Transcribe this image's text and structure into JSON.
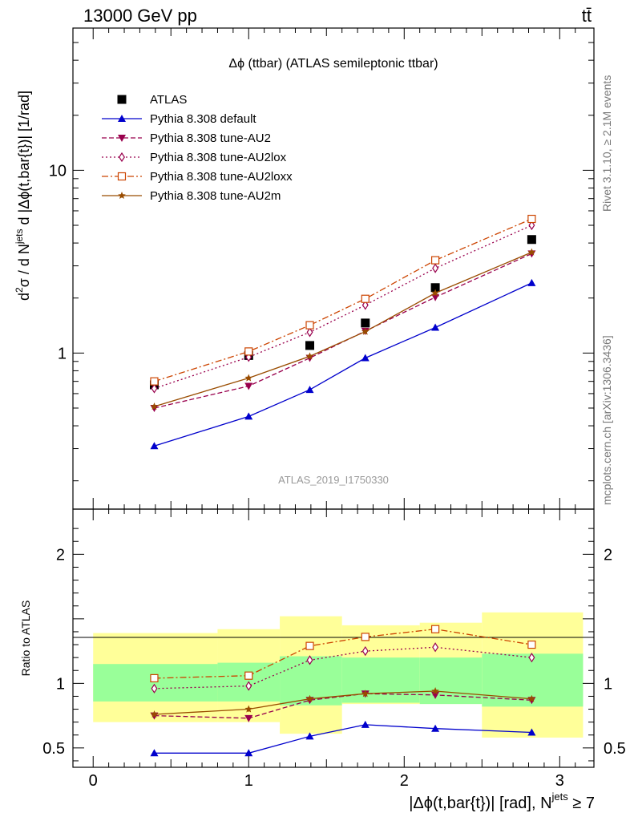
{
  "header": {
    "energy_label": "13000 GeV pp",
    "process_label": "tt̄"
  },
  "side_labels": {
    "rivet": "Rivet 3.1.10, ≥ 2.1M events",
    "mcplots": "mcplots.cern.ch [arXiv:1306.3436]"
  },
  "chart_data": [
    {
      "type": "scatter",
      "panel": "main",
      "title": "Δϕ (ttbar) (ATLAS semileptonic ttbar)",
      "watermark": "ATLAS_2019_I1750330",
      "ylabel": "d²σ / d N^jets d |Δϕ(t,bar{t})| [1/rad]",
      "ylabel_parts": {
        "a": "d",
        "a_sup": "2",
        "b": "σ / d N",
        "b_sup": "jets",
        "c": " d |Δϕ(t,bar{t})| [1/rad]"
      },
      "yscale": "log",
      "ylim": [
        0.14,
        60
      ],
      "xlim": [
        -0.13,
        3.22
      ],
      "ytick_labels": [
        "1",
        "10"
      ],
      "ytick_values": [
        1,
        10
      ],
      "legend_position": "top-left",
      "x": [
        0.393,
        1.0,
        1.393,
        1.75,
        2.2,
        2.82
      ],
      "series": [
        {
          "name": "ATLAS",
          "color": "#000000",
          "marker": "square",
          "line": "none",
          "values": [
            0.67,
            0.97,
            1.1,
            1.46,
            2.28,
            4.18
          ]
        },
        {
          "name": "Pythia 8.308 default",
          "color": "#0000cc",
          "marker": "triangle-up",
          "line": "solid",
          "values": [
            0.31,
            0.45,
            0.63,
            0.94,
            1.38,
            2.42
          ]
        },
        {
          "name": "Pythia 8.308 tune-AU2",
          "color": "#99004d",
          "marker": "triangle-down",
          "line": "dashed",
          "values": [
            0.5,
            0.66,
            0.94,
            1.32,
            2.02,
            3.5
          ]
        },
        {
          "name": "Pythia 8.308 tune-AU2lox",
          "color": "#99004d",
          "marker": "diamond-open",
          "line": "dotted",
          "values": [
            0.64,
            0.95,
            1.3,
            1.83,
            2.91,
            5.0
          ]
        },
        {
          "name": "Pythia 8.308 tune-AU2loxx",
          "color": "#cc4400",
          "marker": "square-open",
          "line": "dashdot",
          "values": [
            0.7,
            1.02,
            1.42,
            1.98,
            3.22,
            5.42
          ]
        },
        {
          "name": "Pythia 8.308 tune-AU2m",
          "color": "#994c00",
          "marker": "star",
          "line": "solid",
          "values": [
            0.51,
            0.73,
            0.96,
            1.31,
            2.13,
            3.56
          ]
        }
      ]
    },
    {
      "type": "line",
      "panel": "ratio",
      "ylabel": "Ratio to ATLAS",
      "xlabel": "|Δϕ(t,bar{t})| [rad], N^jets ≥ 7",
      "xlabel_parts": {
        "a": "|Δϕ(t,bar{t})| [rad], N",
        "a_sup": "jets",
        "b": " ≥ 7"
      },
      "ylim": [
        0.35,
        2.35
      ],
      "xlim": [
        -0.13,
        3.22
      ],
      "xtick_labels": [
        "0",
        "1",
        "2",
        "3"
      ],
      "xtick_values": [
        0,
        1,
        2,
        3
      ],
      "ytick_labels": [
        "0.5",
        "1",
        "2"
      ],
      "ytick_values": [
        0.5,
        1,
        2
      ],
      "bands": {
        "bins": [
          [
            0.0,
            0.8
          ],
          [
            0.8,
            1.2
          ],
          [
            1.2,
            1.6
          ],
          [
            1.6,
            2.1
          ],
          [
            2.1,
            2.5
          ],
          [
            2.5,
            3.15
          ]
        ],
        "green": [
          [
            0.86,
            1.15
          ],
          [
            0.86,
            1.16
          ],
          [
            0.83,
            1.21
          ],
          [
            0.85,
            1.2
          ],
          [
            0.84,
            1.2
          ],
          [
            0.82,
            1.23
          ]
        ],
        "yellow": [
          [
            0.7,
            1.39
          ],
          [
            0.7,
            1.42
          ],
          [
            0.61,
            1.52
          ],
          [
            0.84,
            1.45
          ],
          [
            0.84,
            1.47
          ],
          [
            0.58,
            1.55
          ]
        ]
      },
      "x": [
        0.393,
        1.0,
        1.393,
        1.75,
        2.2,
        2.82
      ],
      "series": [
        {
          "name": "Pythia 8.308 default",
          "color": "#0000cc",
          "marker": "triangle-up",
          "line": "solid",
          "values": [
            0.46,
            0.46,
            0.59,
            0.68,
            0.65,
            0.62
          ],
          "errors": [
            0.02,
            0.02,
            0.015,
            0.015,
            0.01,
            0.01
          ]
        },
        {
          "name": "Pythia 8.308 tune-AU2",
          "color": "#99004d",
          "marker": "triangle-down",
          "line": "dashed",
          "values": [
            0.75,
            0.73,
            0.87,
            0.92,
            0.91,
            0.87
          ],
          "errors": [
            0.015,
            0.02,
            0.015,
            0.015,
            0.01,
            0.01
          ]
        },
        {
          "name": "Pythia 8.308 tune-AU2lox",
          "color": "#99004d",
          "marker": "diamond-open",
          "line": "dotted",
          "values": [
            0.96,
            0.98,
            1.18,
            1.25,
            1.28,
            1.2
          ],
          "errors": [
            0.015,
            0.02,
            0.015,
            0.015,
            0.01,
            0.01
          ]
        },
        {
          "name": "Pythia 8.308 tune-AU2loxx",
          "color": "#cc4400",
          "marker": "square-open",
          "line": "dashdot",
          "values": [
            1.04,
            1.06,
            1.29,
            1.36,
            1.42,
            1.3
          ],
          "errors": [
            0.015,
            0.02,
            0.015,
            0.015,
            0.01,
            0.01
          ]
        },
        {
          "name": "Pythia 8.308 tune-AU2m",
          "color": "#994c00",
          "marker": "star",
          "line": "solid",
          "values": [
            0.76,
            0.8,
            0.88,
            0.92,
            0.94,
            0.88
          ],
          "errors": [
            0.015,
            0.02,
            0.015,
            0.015,
            0.01,
            0.01
          ]
        }
      ]
    }
  ]
}
